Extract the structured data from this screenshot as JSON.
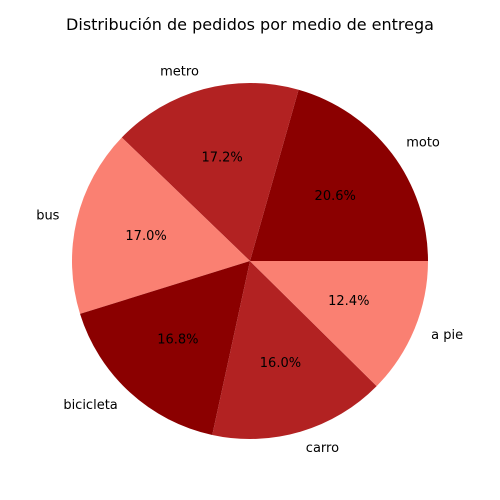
{
  "chart_data": {
    "type": "pie",
    "title": "Distribución de pedidos por medio de entrega",
    "categories": [
      "moto",
      "metro",
      "bus",
      "bicicleta",
      "carro",
      "a pie"
    ],
    "values": [
      20.6,
      17.2,
      17.0,
      16.8,
      16.0,
      12.4
    ],
    "percent_labels": [
      "20.6%",
      "17.2%",
      "17.0%",
      "16.8%",
      "16.0%",
      "12.4%"
    ],
    "colors": [
      "#8b0000",
      "#b22222",
      "#fa8072",
      "#8b0000",
      "#b22222",
      "#fa8072"
    ],
    "start_angle_deg": 0,
    "direction": "counterclockwise"
  }
}
